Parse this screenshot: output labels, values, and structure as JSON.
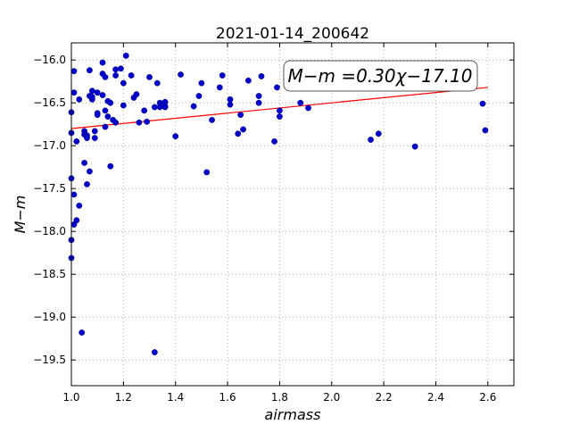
{
  "chart_data": {
    "type": "scatter",
    "title": "2021-01-14_200642",
    "xlabel": "airmass",
    "ylabel": "M−m",
    "xlim": [
      1.0,
      2.7
    ],
    "ylim": [
      -19.8,
      -15.8
    ],
    "y_inverted": true,
    "grid": true,
    "x_ticks": [
      1.0,
      1.2,
      1.4,
      1.6,
      1.8,
      2.0,
      2.2,
      2.4,
      2.6
    ],
    "x_tick_labels": [
      "1.0",
      "1.2",
      "1.4",
      "1.6",
      "1.8",
      "2.0",
      "2.2",
      "2.4",
      "2.6"
    ],
    "y_ticks": [
      -16.0,
      -16.5,
      -17.0,
      -17.5,
      -18.0,
      -18.5,
      -19.0,
      -19.5
    ],
    "y_tick_labels": [
      "−16.0",
      "−16.5",
      "−17.0",
      "−17.5",
      "−18.0",
      "−18.5",
      "−19.0",
      "−19.5"
    ],
    "annotation": {
      "text": "M−m =0.30χ−17.10",
      "slope": 0.3,
      "intercept": -17.1,
      "placement": "top-right"
    },
    "fit_line": {
      "x": [
        1.0,
        2.6
      ],
      "color": "#ff0000"
    },
    "colors": {
      "points": "#0000cc",
      "fit": "#ff0000",
      "grid": "#a0a0a0"
    },
    "points": [
      [
        1.0,
        -16.85
      ],
      [
        1.0,
        -17.38
      ],
      [
        1.0,
        -18.1
      ],
      [
        1.0,
        -18.31
      ],
      [
        1.0,
        -16.61
      ],
      [
        1.01,
        -16.13
      ],
      [
        1.01,
        -16.38
      ],
      [
        1.01,
        -17.92
      ],
      [
        1.01,
        -17.57
      ],
      [
        1.02,
        -16.95
      ],
      [
        1.02,
        -17.87
      ],
      [
        1.03,
        -16.46
      ],
      [
        1.03,
        -17.7
      ],
      [
        1.04,
        -19.18
      ],
      [
        1.05,
        -16.83
      ],
      [
        1.05,
        -16.87
      ],
      [
        1.05,
        -17.2
      ],
      [
        1.06,
        -16.88
      ],
      [
        1.06,
        -16.91
      ],
      [
        1.06,
        -17.45
      ],
      [
        1.07,
        -16.12
      ],
      [
        1.07,
        -16.42
      ],
      [
        1.07,
        -17.3
      ],
      [
        1.08,
        -16.36
      ],
      [
        1.08,
        -16.46
      ],
      [
        1.08,
        -16.43
      ],
      [
        1.09,
        -16.83
      ],
      [
        1.09,
        -16.91
      ],
      [
        1.1,
        -16.38
      ],
      [
        1.1,
        -16.62
      ],
      [
        1.1,
        -16.64
      ],
      [
        1.12,
        -16.03
      ],
      [
        1.12,
        -16.16
      ],
      [
        1.12,
        -16.41
      ],
      [
        1.13,
        -16.2
      ],
      [
        1.13,
        -16.59
      ],
      [
        1.13,
        -16.78
      ],
      [
        1.14,
        -16.48
      ],
      [
        1.14,
        -16.66
      ],
      [
        1.15,
        -16.5
      ],
      [
        1.15,
        -17.24
      ],
      [
        1.16,
        -16.7
      ],
      [
        1.17,
        -16.11
      ],
      [
        1.17,
        -16.18
      ],
      [
        1.17,
        -16.73
      ],
      [
        1.19,
        -16.1
      ],
      [
        1.2,
        -16.27
      ],
      [
        1.2,
        -16.53
      ],
      [
        1.21,
        -15.95
      ],
      [
        1.23,
        -16.18
      ],
      [
        1.24,
        -16.44
      ],
      [
        1.25,
        -16.4
      ],
      [
        1.26,
        -16.73
      ],
      [
        1.28,
        -16.59
      ],
      [
        1.29,
        -16.72
      ],
      [
        1.3,
        -16.2
      ],
      [
        1.32,
        -16.55
      ],
      [
        1.32,
        -19.41
      ],
      [
        1.33,
        -16.27
      ],
      [
        1.34,
        -16.5
      ],
      [
        1.34,
        -16.55
      ],
      [
        1.35,
        -16.51
      ],
      [
        1.36,
        -16.55
      ],
      [
        1.36,
        -16.49
      ],
      [
        1.36,
        -16.54
      ],
      [
        1.4,
        -16.89
      ],
      [
        1.42,
        -16.17
      ],
      [
        1.47,
        -16.54
      ],
      [
        1.49,
        -16.42
      ],
      [
        1.5,
        -16.27
      ],
      [
        1.52,
        -17.31
      ],
      [
        1.54,
        -16.7
      ],
      [
        1.57,
        -16.32
      ],
      [
        1.58,
        -16.18
      ],
      [
        1.61,
        -16.46
      ],
      [
        1.61,
        -16.52
      ],
      [
        1.64,
        -16.86
      ],
      [
        1.65,
        -16.64
      ],
      [
        1.66,
        -16.81
      ],
      [
        1.68,
        -16.24
      ],
      [
        1.72,
        -16.42
      ],
      [
        1.72,
        -16.5
      ],
      [
        1.73,
        -16.19
      ],
      [
        1.78,
        -16.95
      ],
      [
        1.79,
        -16.32
      ],
      [
        1.8,
        -16.59
      ],
      [
        1.8,
        -16.66
      ],
      [
        1.88,
        -16.5
      ],
      [
        1.91,
        -16.56
      ],
      [
        2.15,
        -16.93
      ],
      [
        2.18,
        -16.86
      ],
      [
        2.32,
        -17.01
      ],
      [
        2.58,
        -16.51
      ],
      [
        2.59,
        -16.82
      ]
    ]
  }
}
